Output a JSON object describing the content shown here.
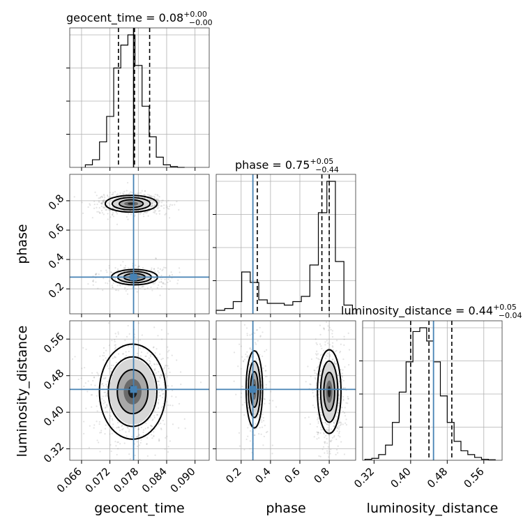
{
  "chart_data": {
    "type": "corner",
    "parameters": [
      "geocent_time",
      "phase",
      "luminosity_distance"
    ],
    "truths": {
      "geocent_time": 0.077,
      "phase": 0.28,
      "luminosity_distance": 0.45
    },
    "titles": [
      {
        "name": "geocent_time",
        "text": "geocent_time = 0.08",
        "plus": "+0.00",
        "minus": "−0.00"
      },
      {
        "name": "phase",
        "text": "phase = 0.75",
        "plus": "+0.05",
        "minus": "−0.44"
      },
      {
        "name": "luminosity_distance",
        "text": "luminosity_distance = 0.44",
        "plus": "+0.05",
        "minus": "−0.04"
      }
    ],
    "axes": {
      "geocent_time": {
        "label": "geocent_time",
        "range": [
          0.0635,
          0.093
        ],
        "ticks": [
          0.066,
          0.072,
          0.078,
          0.084,
          0.09
        ],
        "tick_labels": [
          "0.066",
          "0.072",
          "0.078",
          "0.084",
          "0.090"
        ]
      },
      "phase": {
        "label": "phase",
        "range": [
          0.03,
          0.98
        ],
        "ticks": [
          0.2,
          0.4,
          0.6,
          0.8
        ],
        "tick_labels": [
          "0.2",
          "0.4",
          "0.6",
          "0.8"
        ]
      },
      "luminosity_distance": {
        "label": "luminosity_distance",
        "range": [
          0.295,
          0.6
        ],
        "ticks": [
          0.32,
          0.4,
          0.48,
          0.56
        ],
        "tick_labels": [
          "0.32",
          "0.40",
          "0.48",
          "0.56"
        ]
      }
    },
    "quantiles": {
      "geocent_time": [
        0.0738,
        0.0772,
        0.0804
      ],
      "phase": [
        0.31,
        0.75,
        0.8
      ],
      "luminosity_distance": [
        0.4,
        0.44,
        0.49
      ]
    },
    "histograms": {
      "geocent_time": {
        "edges": [
          0.0668,
          0.0683,
          0.0698,
          0.0713,
          0.0728,
          0.0743,
          0.0758,
          0.0773,
          0.0788,
          0.0803,
          0.0818,
          0.0833,
          0.0848,
          0.0863,
          0.0878
        ],
        "counts": [
          1,
          3,
          10,
          20,
          39,
          48,
          52,
          40,
          24,
          12,
          4,
          1,
          0.3,
          0
        ]
      },
      "phase": {
        "edges": [
          0.03,
          0.088,
          0.146,
          0.204,
          0.262,
          0.32,
          0.378,
          0.436,
          0.494,
          0.552,
          0.61,
          0.668,
          0.726,
          0.784,
          0.842,
          0.9,
          0.958
        ],
        "counts": [
          2,
          3,
          7,
          24,
          18,
          8,
          6,
          6,
          5,
          7,
          10,
          28,
          58,
          76,
          30,
          5
        ]
      },
      "luminosity_distance": {
        "edges": [
          0.3,
          0.315,
          0.33,
          0.345,
          0.36,
          0.375,
          0.39,
          0.405,
          0.42,
          0.435,
          0.45,
          0.465,
          0.48,
          0.495,
          0.51,
          0.525,
          0.54,
          0.555,
          0.57,
          0.585
        ],
        "counts": [
          0.5,
          1,
          3,
          8,
          20,
          36,
          52,
          68,
          70,
          63,
          52,
          34,
          20,
          10,
          5,
          3,
          1.5,
          0.5,
          0.3
        ]
      }
    },
    "density_2d": [
      {
        "x": "geocent_time",
        "y": "phase",
        "modes": [
          {
            "cx": 0.0765,
            "cy": 0.78,
            "sx": 0.0024,
            "sy": 0.025,
            "weight": 0.7
          },
          {
            "cx": 0.0772,
            "cy": 0.28,
            "sx": 0.0026,
            "sy": 0.028,
            "weight": 0.3
          }
        ]
      },
      {
        "x": "geocent_time",
        "y": "luminosity_distance",
        "modes": [
          {
            "cx": 0.0768,
            "cy": 0.445,
            "sx": 0.0027,
            "sy": 0.04,
            "weight": 1.0
          }
        ]
      },
      {
        "x": "phase",
        "y": "luminosity_distance",
        "modes": [
          {
            "cx": 0.8,
            "cy": 0.445,
            "sx": 0.035,
            "sy": 0.04,
            "weight": 0.7
          },
          {
            "cx": 0.29,
            "cy": 0.45,
            "sx": 0.03,
            "sy": 0.045,
            "weight": 0.3
          }
        ]
      }
    ]
  }
}
